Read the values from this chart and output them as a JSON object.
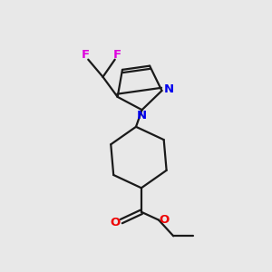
{
  "background_color": "#e8e8e8",
  "bond_color": "#1a1a1a",
  "N_color": "#0000ee",
  "O_color": "#ee0000",
  "F_color": "#dd00dd",
  "figsize": [
    3.0,
    3.0
  ],
  "dpi": 100,
  "xlim": [
    0,
    10
  ],
  "ylim": [
    0,
    10
  ]
}
